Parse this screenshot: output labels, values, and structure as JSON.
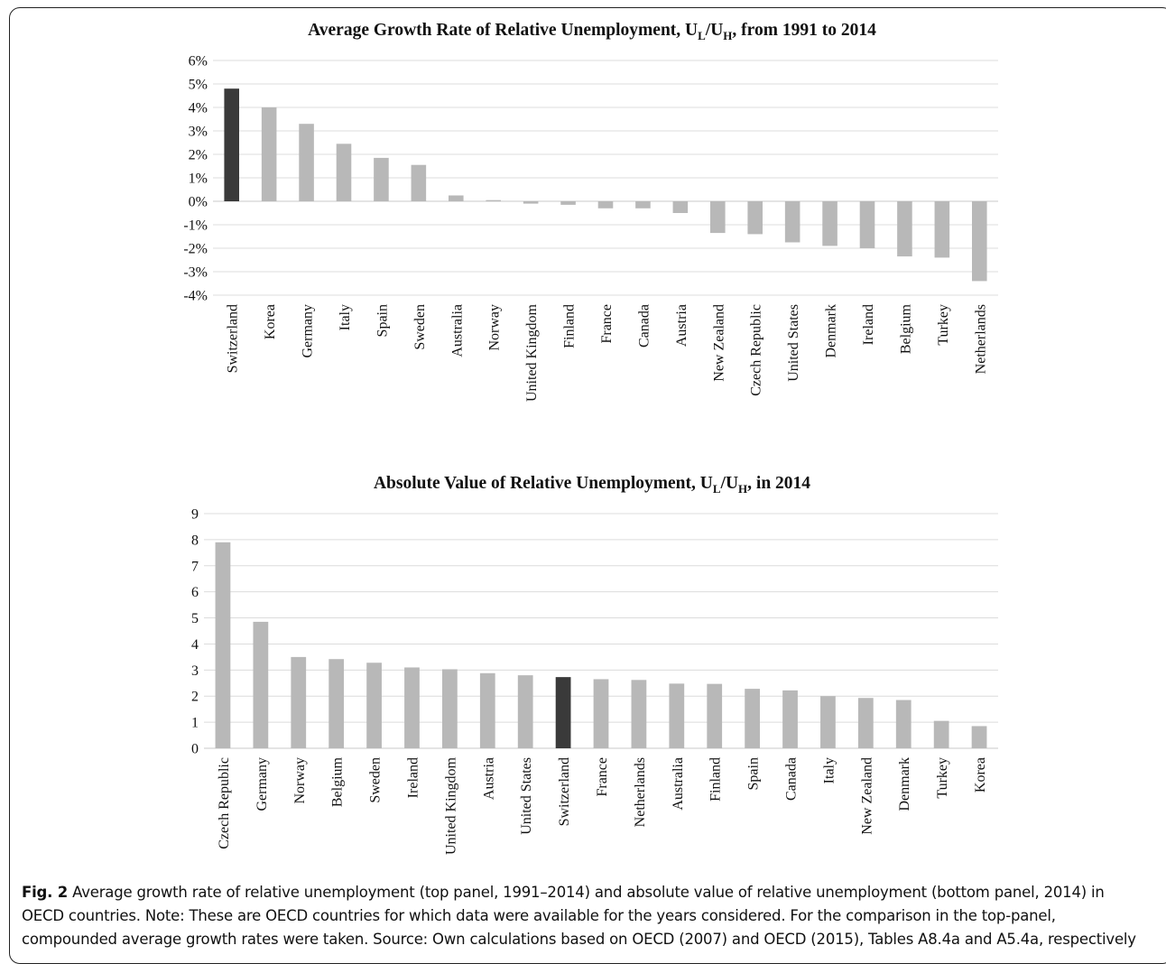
{
  "chart_data": [
    {
      "type": "bar",
      "title": "Average Growth Rate of Relative Unemployment, U",
      "title_sub1": "L",
      "title_mid": "/U",
      "title_sub2": "H",
      "title_tail": ", from 1991 to 2014",
      "categories": [
        "Switzerland",
        "Korea",
        "Germany",
        "Italy",
        "Spain",
        "Sweden",
        "Australia",
        "Norway",
        "United Kingdom",
        "Finland",
        "France",
        "Canada",
        "Austria",
        "New Zealand",
        "Czech Republic",
        "United States",
        "Denmark",
        "Ireland",
        "Belgium",
        "Turkey",
        "Netherlands"
      ],
      "values": [
        4.8,
        4.0,
        3.3,
        2.45,
        1.85,
        1.55,
        0.25,
        0.05,
        -0.1,
        -0.15,
        -0.3,
        -0.3,
        -0.5,
        -1.35,
        -1.4,
        -1.75,
        -1.9,
        -2.0,
        -2.35,
        -2.4,
        -3.4
      ],
      "highlight": "Switzerland",
      "ylim": [
        -4,
        6
      ],
      "yticks": [
        "-4%",
        "-3%",
        "-2%",
        "-1%",
        "0%",
        "1%",
        "2%",
        "3%",
        "4%",
        "5%",
        "6%"
      ],
      "xlabel": "",
      "ylabel": "",
      "grid": true
    },
    {
      "type": "bar",
      "title": "Absolute Value of Relative Unemployment, U",
      "title_sub1": "L",
      "title_mid": "/U",
      "title_sub2": "H",
      "title_tail": ", in 2014",
      "categories": [
        "Czech Republic",
        "Germany",
        "Norway",
        "Belgium",
        "Sweden",
        "Ireland",
        "United Kingdom",
        "Austria",
        "United States",
        "Switzerland",
        "France",
        "Netherlands",
        "Australia",
        "Finland",
        "Spain",
        "Canada",
        "Italy",
        "New Zealand",
        "Denmark",
        "Turkey",
        "Korea"
      ],
      "values": [
        7.9,
        4.85,
        3.5,
        3.42,
        3.28,
        3.1,
        3.03,
        2.88,
        2.8,
        2.73,
        2.65,
        2.62,
        2.48,
        2.47,
        2.28,
        2.22,
        2.0,
        1.93,
        1.85,
        1.05,
        0.85
      ],
      "highlight": "Switzerland",
      "ylim": [
        0,
        9
      ],
      "yticks": [
        "0",
        "1",
        "2",
        "3",
        "4",
        "5",
        "6",
        "7",
        "8",
        "9"
      ],
      "xlabel": "",
      "ylabel": "",
      "grid": true
    }
  ],
  "caption": {
    "label": "Fig. 2",
    "text": " Average growth rate of relative unemployment (top panel, 1991–2014) and absolute value of relative unemployment (bottom panel, 2014) in OECD countries. Note: These are OECD countries for which data were available for the years considered. For the comparison in the top-panel, compounded average growth rates were taken. Source: Own calculations based on OECD (2007) and OECD (2015), Tables A8.4a and A5.4a, respectively"
  },
  "colors": {
    "bar": "#b8b8b8",
    "highlight": "#3a3a3a",
    "grid": "#dcdcdc",
    "text": "#111111"
  }
}
